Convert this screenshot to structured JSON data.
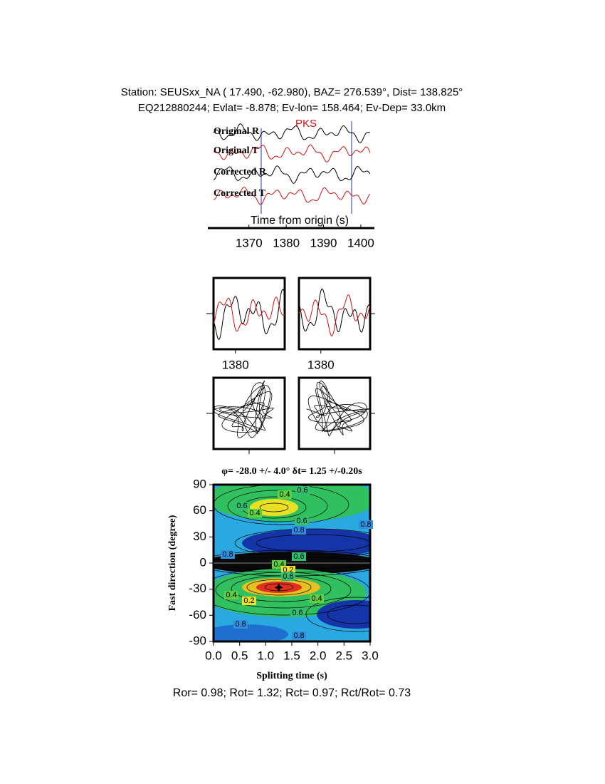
{
  "header": {
    "station": "Station: SEUSxx_NA (  17.490,  -62.980), BAZ=  276.539°, Dist=  138.825°",
    "event": "EQ212880244; Evlat=  -8.878; Ev-lon= 158.464; Ev-Dep= 33.0km"
  },
  "chart_data": [
    {
      "type": "waveform",
      "trace_labels": [
        "Original R",
        "Original T",
        "Corrected R",
        "Corrected T"
      ],
      "phase": "PKS",
      "xlabel": "Time from origin (s)",
      "xlim": [
        1360.5,
        1402.5
      ],
      "xticks": [
        1370,
        1380,
        1390,
        1400
      ]
    },
    {
      "type": "window",
      "xlim": [
        1372,
        1398
      ],
      "xticks": [
        1380
      ]
    },
    {
      "type": "window",
      "xlim": [
        1372,
        1398
      ],
      "xticks": [
        1380
      ]
    },
    {
      "type": "contour",
      "title": "φ= -28.0 +/- 4.0° δt= 1.25 +/-0.20s",
      "xlabel": "Splitting time (s)",
      "ylabel": "Fast direction (degree)",
      "xlim": [
        0,
        3
      ],
      "xticks": [
        {
          "value": 0,
          "label": "0.0"
        },
        0.5,
        {
          "value": 1,
          "label": "1.0"
        },
        1.5,
        {
          "value": 2,
          "label": "2.0"
        },
        2.5,
        {
          "value": 3,
          "label": "3.0"
        }
      ],
      "ylim": [
        -90,
        90
      ],
      "yticks": [
        -90,
        -60,
        -30,
        0,
        30,
        60,
        90
      ],
      "best_fit": {
        "x": 1.25,
        "y": -28
      },
      "contour_labels": [
        0.4,
        0.6,
        0.6,
        0.4,
        0.6,
        0.8,
        0.8,
        0.8,
        0.6,
        0.4,
        0.2,
        0.6,
        0.4,
        0.2,
        0.4,
        0.6,
        0.8,
        0.8
      ]
    }
  ],
  "footer": "Ror= 0.98; Rot= 1.32; Rct= 0.97; Rct/Rot= 0.73"
}
